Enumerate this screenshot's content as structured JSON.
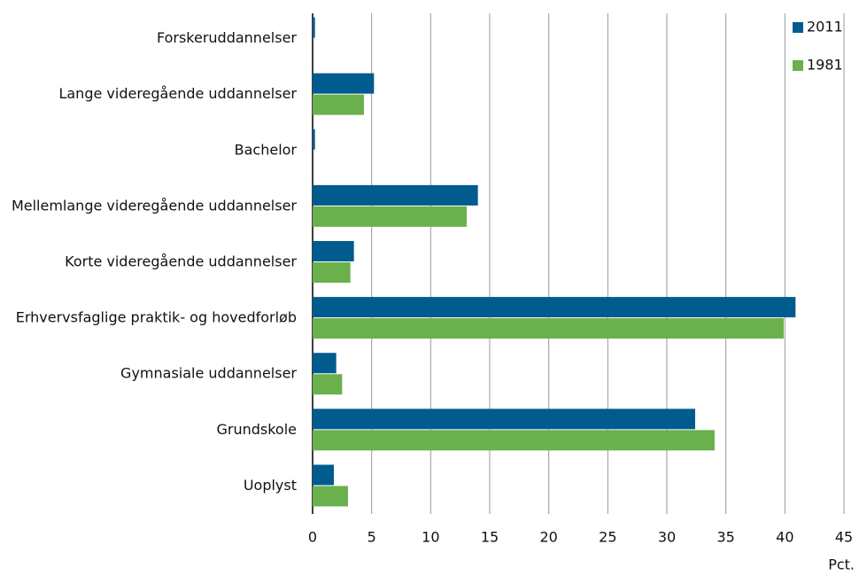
{
  "chart_data": {
    "type": "hbar",
    "categories": [
      "Forskeruddannelser",
      "Lange videregående uddannelser",
      "Bachelor",
      "Mellemlange videregående uddannelser",
      "Korte videregående uddannelser",
      "Erhvervsfaglige praktik- og hovedforløb",
      "Gymnasiale uddannelser",
      "Grundskole",
      "Uoplyst"
    ],
    "series": [
      {
        "name": "2011",
        "color": "#005b8f",
        "values": [
          0.2,
          5.2,
          0.2,
          14.0,
          3.5,
          40.9,
          2.0,
          32.4,
          1.8
        ]
      },
      {
        "name": "1981",
        "color": "#6ab04c",
        "values": [
          0,
          4.35,
          0,
          13.05,
          3.2,
          39.9,
          2.5,
          34.05,
          3.0
        ]
      }
    ],
    "xlabel": "Pct.",
    "xlim": [
      0,
      45
    ],
    "xticks": [
      0,
      5,
      10,
      15,
      20,
      25,
      30,
      35,
      40,
      45
    ],
    "grid": true,
    "legend": "top-right"
  }
}
